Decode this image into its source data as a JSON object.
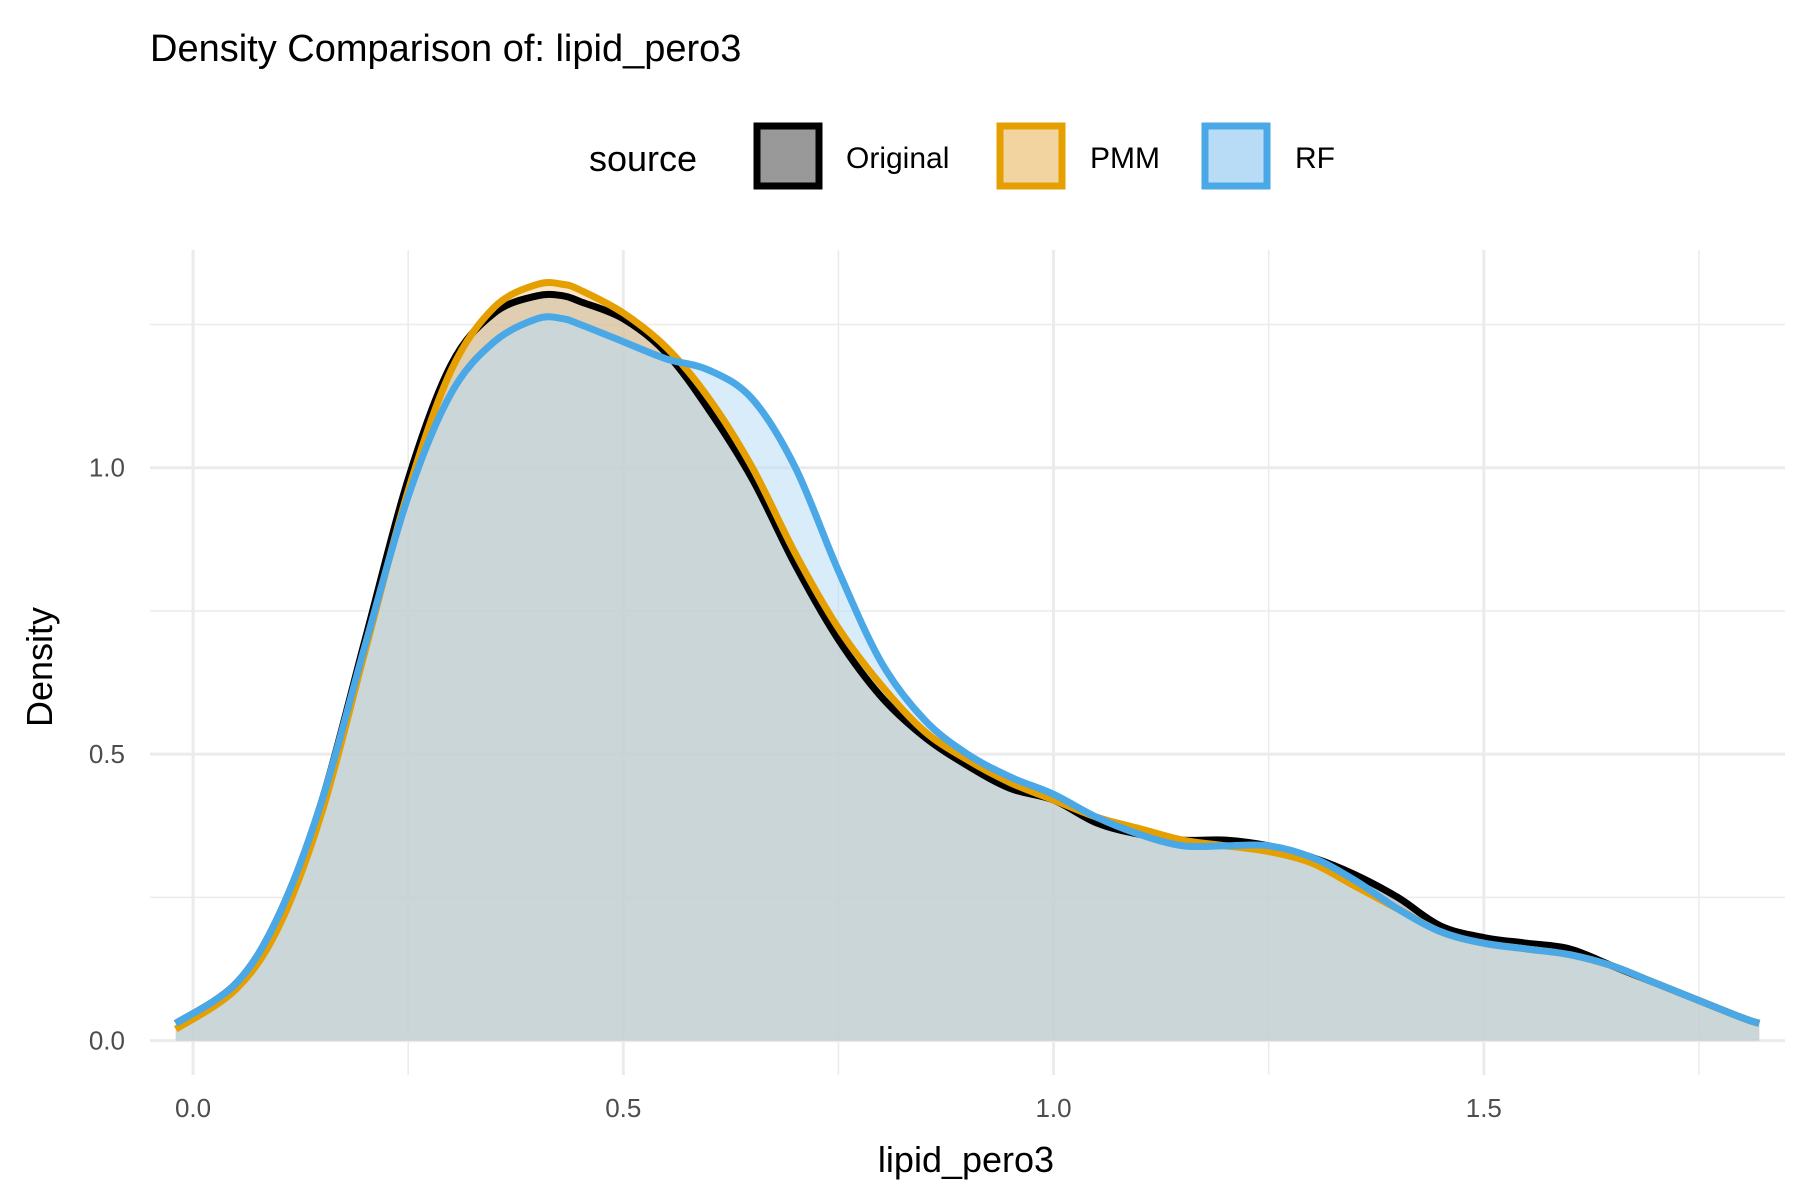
{
  "chart_data": {
    "type": "area",
    "title": "Density Comparison of: lipid_pero3",
    "xlabel": "lipid_pero3",
    "ylabel": "Density",
    "xlim": [
      -0.05,
      1.85
    ],
    "ylim": [
      -0.06,
      1.38
    ],
    "x_ticks": [
      0.0,
      0.5,
      1.0,
      1.5
    ],
    "x_tick_labels": [
      "0.0",
      "0.5",
      "1.0",
      "1.5"
    ],
    "y_ticks": [
      0.0,
      0.5,
      1.0
    ],
    "y_tick_labels": [
      "0.0",
      "0.5",
      "1.0"
    ],
    "grid": true,
    "legend": {
      "title": "source",
      "position": "top"
    },
    "series": [
      {
        "name": "Original",
        "color": "#000000",
        "fill": "#999999",
        "x": [
          -0.02,
          0.05,
          0.1,
          0.15,
          0.2,
          0.25,
          0.3,
          0.35,
          0.4,
          0.43,
          0.45,
          0.5,
          0.55,
          0.6,
          0.65,
          0.7,
          0.75,
          0.8,
          0.85,
          0.9,
          0.95,
          1.0,
          1.05,
          1.1,
          1.15,
          1.2,
          1.25,
          1.3,
          1.35,
          1.4,
          1.45,
          1.5,
          1.55,
          1.6,
          1.65,
          1.7,
          1.75,
          1.8,
          1.82
        ],
        "values": [
          0.03,
          0.1,
          0.22,
          0.42,
          0.7,
          0.98,
          1.18,
          1.27,
          1.3,
          1.3,
          1.29,
          1.26,
          1.2,
          1.1,
          0.98,
          0.83,
          0.7,
          0.6,
          0.53,
          0.48,
          0.44,
          0.42,
          0.38,
          0.36,
          0.35,
          0.35,
          0.34,
          0.32,
          0.29,
          0.25,
          0.2,
          0.18,
          0.17,
          0.16,
          0.13,
          0.1,
          0.07,
          0.04,
          0.03
        ]
      },
      {
        "name": "PMM",
        "color": "#E69F00",
        "fill": "#F2D4A0",
        "x": [
          -0.02,
          0.05,
          0.1,
          0.15,
          0.2,
          0.25,
          0.3,
          0.35,
          0.4,
          0.43,
          0.45,
          0.5,
          0.55,
          0.6,
          0.65,
          0.7,
          0.75,
          0.8,
          0.85,
          0.9,
          0.95,
          1.0,
          1.05,
          1.1,
          1.15,
          1.2,
          1.25,
          1.3,
          1.35,
          1.4,
          1.45,
          1.5,
          1.55,
          1.6,
          1.65,
          1.7,
          1.75,
          1.8,
          1.82
        ],
        "values": [
          0.02,
          0.09,
          0.2,
          0.4,
          0.68,
          0.96,
          1.17,
          1.28,
          1.32,
          1.32,
          1.31,
          1.27,
          1.21,
          1.12,
          1.0,
          0.85,
          0.72,
          0.62,
          0.54,
          0.49,
          0.45,
          0.42,
          0.39,
          0.37,
          0.35,
          0.34,
          0.33,
          0.31,
          0.27,
          0.23,
          0.19,
          0.17,
          0.16,
          0.15,
          0.13,
          0.1,
          0.07,
          0.04,
          0.03
        ]
      },
      {
        "name": "RF",
        "color": "#4BA8E6",
        "fill": "#B8DCF5",
        "x": [
          -0.02,
          0.05,
          0.1,
          0.15,
          0.2,
          0.25,
          0.3,
          0.35,
          0.4,
          0.43,
          0.45,
          0.5,
          0.55,
          0.6,
          0.65,
          0.7,
          0.75,
          0.8,
          0.85,
          0.9,
          0.95,
          1.0,
          1.05,
          1.1,
          1.15,
          1.2,
          1.25,
          1.3,
          1.35,
          1.4,
          1.45,
          1.5,
          1.55,
          1.6,
          1.65,
          1.7,
          1.75,
          1.8,
          1.82
        ],
        "values": [
          0.03,
          0.1,
          0.22,
          0.42,
          0.69,
          0.95,
          1.13,
          1.22,
          1.26,
          1.26,
          1.25,
          1.22,
          1.19,
          1.17,
          1.12,
          1.0,
          0.82,
          0.66,
          0.56,
          0.5,
          0.46,
          0.43,
          0.39,
          0.36,
          0.34,
          0.34,
          0.34,
          0.32,
          0.28,
          0.23,
          0.19,
          0.17,
          0.16,
          0.15,
          0.13,
          0.1,
          0.07,
          0.04,
          0.03
        ]
      }
    ]
  }
}
